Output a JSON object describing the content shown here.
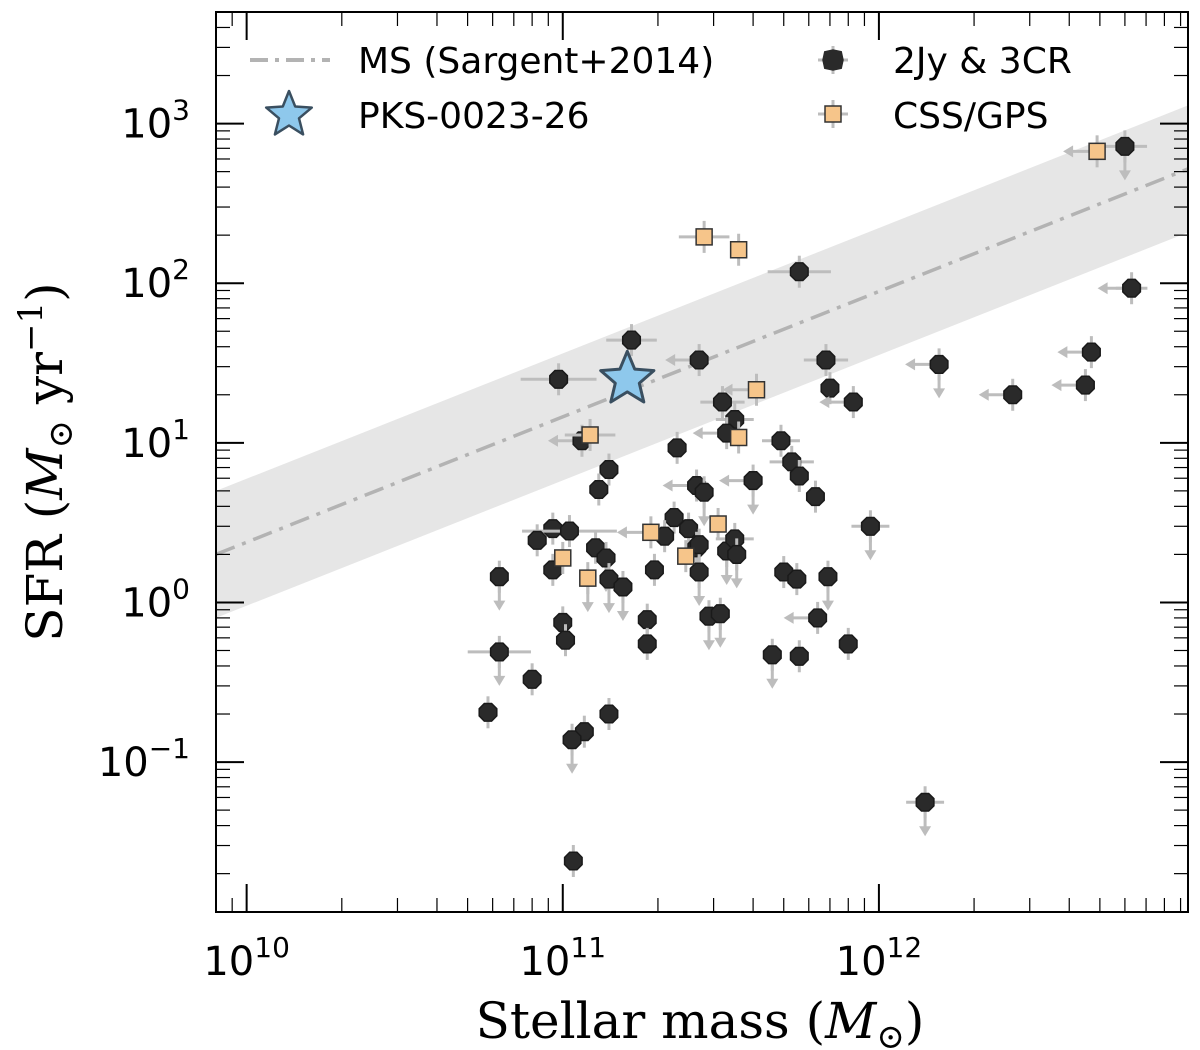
{
  "chart_data": {
    "type": "scatter",
    "xscale": "log",
    "yscale": "log",
    "xlim": [
      8000000000.0,
      9500000000000.0
    ],
    "ylim": [
      0.0115,
      5000
    ],
    "xlabel": {
      "prefix": "Stellar mass (",
      "symbol": "M",
      "sub": "⊙",
      "suffix": ")"
    },
    "ylabel": {
      "prefix": "SFR (",
      "symbol": "M",
      "sub": "⊙",
      "mid": " yr",
      "sup": "−1",
      "suffix": ")"
    },
    "x_ticks": [
      {
        "value": 10000000000.0,
        "base": "10",
        "exp": "10"
      },
      {
        "value": 100000000000.0,
        "base": "10",
        "exp": "11"
      },
      {
        "value": 1000000000000.0,
        "base": "10",
        "exp": "12"
      }
    ],
    "y_ticks": [
      {
        "value": 0.1,
        "base": "10",
        "exp": "−1"
      },
      {
        "value": 1,
        "base": "10",
        "exp": "0"
      },
      {
        "value": 10,
        "base": "10",
        "exp": "1"
      },
      {
        "value": 100,
        "base": "10",
        "exp": "2"
      },
      {
        "value": 1000,
        "base": "10",
        "exp": "3"
      }
    ],
    "main_sequence": {
      "name": "MS (Sargent+2014)",
      "points": [
        [
          8000000000.0,
          2.0
        ],
        [
          9500000000000.0,
          520
        ]
      ],
      "band_low_factor": 0.4,
      "band_high_factor": 2.5,
      "color": "#b3b3b3",
      "band_color": "#e6e6e6"
    },
    "series": [
      {
        "name": "2Jy & 3CR",
        "marker": "hexagon",
        "color": "#2a2a2a",
        "points": [
          {
            "x": 6000000000000.0,
            "y": 720,
            "xerr": 0.07,
            "limit": "y"
          },
          {
            "x": 560000000000.0,
            "y": 118,
            "xerr": 0.1,
            "limit": ""
          },
          {
            "x": 6300000000000.0,
            "y": 93,
            "xerr": 0.05,
            "limit": "x"
          },
          {
            "x": 165000000000.0,
            "y": 44,
            "xerr": 0.08,
            "limit": ""
          },
          {
            "x": 270000000000.0,
            "y": 33,
            "xerr": 0.0,
            "limit": "x"
          },
          {
            "x": 680000000000.0,
            "y": 33,
            "xerr": 0.07,
            "limit": ""
          },
          {
            "x": 1550000000000.0,
            "y": 31,
            "xerr": 0.0,
            "limit": "xy"
          },
          {
            "x": 4700000000000.0,
            "y": 37,
            "xerr": 0.0,
            "limit": "x"
          },
          {
            "x": 97000000000.0,
            "y": 25,
            "xerr": 0.12,
            "limit": ""
          },
          {
            "x": 700000000000.0,
            "y": 22,
            "xerr": 0.0,
            "limit": ""
          },
          {
            "x": 4500000000000.0,
            "y": 23,
            "xerr": 0.0,
            "limit": "x"
          },
          {
            "x": 2650000000000.0,
            "y": 20,
            "xerr": 0.0,
            "limit": "x"
          },
          {
            "x": 320000000000.0,
            "y": 18,
            "xerr": 0.07,
            "limit": ""
          },
          {
            "x": 830000000000.0,
            "y": 18,
            "xerr": 0.0,
            "limit": "x"
          },
          {
            "x": 350000000000.0,
            "y": 14,
            "xerr": 0.06,
            "limit": ""
          },
          {
            "x": 330000000000.0,
            "y": 11.5,
            "xerr": 0.0,
            "limit": "x"
          },
          {
            "x": 115000000000.0,
            "y": 10.3,
            "xerr": 0.0,
            "limit": "x"
          },
          {
            "x": 490000000000.0,
            "y": 10.3,
            "xerr": 0.06,
            "limit": ""
          },
          {
            "x": 230000000000.0,
            "y": 9.3,
            "xerr": 0.0,
            "limit": ""
          },
          {
            "x": 530000000000.0,
            "y": 7.6,
            "xerr": 0.07,
            "limit": ""
          },
          {
            "x": 140000000000.0,
            "y": 6.8,
            "xerr": 0.0,
            "limit": ""
          },
          {
            "x": 560000000000.0,
            "y": 6.2,
            "xerr": 0.0,
            "limit": ""
          },
          {
            "x": 400000000000.0,
            "y": 5.8,
            "xerr": 0.0,
            "limit": "xy"
          },
          {
            "x": 265000000000.0,
            "y": 5.4,
            "xerr": 0.0,
            "limit": "x"
          },
          {
            "x": 130000000000.0,
            "y": 5.1,
            "xerr": 0.0,
            "limit": ""
          },
          {
            "x": 280000000000.0,
            "y": 4.9,
            "xerr": 0.0,
            "limit": "y"
          },
          {
            "x": 630000000000.0,
            "y": 4.6,
            "xerr": 0.0,
            "limit": ""
          },
          {
            "x": 225000000000.0,
            "y": 3.4,
            "xerr": 0.0,
            "limit": ""
          },
          {
            "x": 210000000000.0,
            "y": 2.6,
            "xerr": 0.0,
            "limit": ""
          },
          {
            "x": 250000000000.0,
            "y": 2.9,
            "xerr": 0.0,
            "limit": ""
          },
          {
            "x": 93000000000.0,
            "y": 2.9,
            "xerr": 0.0,
            "limit": ""
          },
          {
            "x": 105000000000.0,
            "y": 2.8,
            "xerr": 0.15,
            "limit": ""
          },
          {
            "x": 83000000000.0,
            "y": 2.45,
            "xerr": 0.0,
            "limit": ""
          },
          {
            "x": 265000000000.0,
            "y": 2.2,
            "xerr": 0.0,
            "limit": ""
          },
          {
            "x": 270000000000.0,
            "y": 2.3,
            "xerr": 0.0,
            "limit": ""
          },
          {
            "x": 330000000000.0,
            "y": 2.1,
            "xerr": 0.0,
            "limit": "y"
          },
          {
            "x": 350000000000.0,
            "y": 2.5,
            "xerr": 0.06,
            "limit": ""
          },
          {
            "x": 355000000000.0,
            "y": 2.0,
            "xerr": 0.0,
            "limit": "y"
          },
          {
            "x": 127000000000.0,
            "y": 2.2,
            "xerr": 0.0,
            "limit": ""
          },
          {
            "x": 137000000000.0,
            "y": 1.9,
            "xerr": 0.0,
            "limit": "y"
          },
          {
            "x": 93000000000.0,
            "y": 1.6,
            "xerr": 0.0,
            "limit": ""
          },
          {
            "x": 195000000000.0,
            "y": 1.6,
            "xerr": 0.0,
            "limit": ""
          },
          {
            "x": 270000000000.0,
            "y": 1.55,
            "xerr": 0.0,
            "limit": "y"
          },
          {
            "x": 500000000000.0,
            "y": 1.55,
            "xerr": 0.0,
            "limit": ""
          },
          {
            "x": 550000000000.0,
            "y": 1.4,
            "xerr": 0.0,
            "limit": ""
          },
          {
            "x": 690000000000.0,
            "y": 1.45,
            "xerr": 0.0,
            "limit": "y"
          },
          {
            "x": 63000000000.0,
            "y": 1.45,
            "xerr": 0.0,
            "limit": "y"
          },
          {
            "x": 140000000000.0,
            "y": 1.4,
            "xerr": 0.0,
            "limit": "y"
          },
          {
            "x": 155000000000.0,
            "y": 1.25,
            "xerr": 0.0,
            "limit": "y"
          },
          {
            "x": 185000000000.0,
            "y": 0.78,
            "xerr": 0.0,
            "limit": "y"
          },
          {
            "x": 290000000000.0,
            "y": 0.82,
            "xerr": 0.0,
            "limit": "y"
          },
          {
            "x": 315000000000.0,
            "y": 0.85,
            "xerr": 0.0,
            "limit": "y"
          },
          {
            "x": 640000000000.0,
            "y": 0.8,
            "xerr": 0.0,
            "limit": "x"
          },
          {
            "x": 100000000000.0,
            "y": 0.75,
            "xerr": 0.0,
            "limit": ""
          },
          {
            "x": 185000000000.0,
            "y": 0.55,
            "xerr": 0.0,
            "limit": ""
          },
          {
            "x": 102000000000.0,
            "y": 0.58,
            "xerr": 0.0,
            "limit": ""
          },
          {
            "x": 800000000000.0,
            "y": 0.55,
            "xerr": 0.0,
            "limit": ""
          },
          {
            "x": 63000000000.0,
            "y": 0.49,
            "xerr": 0.1,
            "limit": "y"
          },
          {
            "x": 460000000000.0,
            "y": 0.47,
            "xerr": 0.0,
            "limit": "y"
          },
          {
            "x": 560000000000.0,
            "y": 0.46,
            "xerr": 0.0,
            "limit": ""
          },
          {
            "x": 80000000000.0,
            "y": 0.33,
            "xerr": 0.0,
            "limit": ""
          },
          {
            "x": 58000000000.0,
            "y": 0.205,
            "xerr": 0.0,
            "limit": ""
          },
          {
            "x": 140000000000.0,
            "y": 0.2,
            "xerr": 0.0,
            "limit": ""
          },
          {
            "x": 117000000000.0,
            "y": 0.155,
            "xerr": 0.0,
            "limit": ""
          },
          {
            "x": 107000000000.0,
            "y": 0.138,
            "xerr": 0.0,
            "limit": "y"
          },
          {
            "x": 1400000000000.0,
            "y": 0.056,
            "xerr": 0.06,
            "limit": "y"
          },
          {
            "x": 108000000000.0,
            "y": 0.024,
            "xerr": 0.0,
            "limit": ""
          },
          {
            "x": 940000000000.0,
            "y": 3.0,
            "xerr": 0.06,
            "limit": "y"
          }
        ]
      },
      {
        "name": "CSS/GPS",
        "marker": "square",
        "color": "#f6c58a",
        "points": [
          {
            "x": 4900000000000.0,
            "y": 670,
            "xerr": 0.0,
            "limit": "x"
          },
          {
            "x": 280000000000.0,
            "y": 195,
            "xerr": 0.08,
            "limit": ""
          },
          {
            "x": 360000000000.0,
            "y": 162,
            "xerr": 0.0,
            "limit": ""
          },
          {
            "x": 410000000000.0,
            "y": 21.5,
            "xerr": 0.0,
            "limit": "x"
          },
          {
            "x": 122000000000.0,
            "y": 11.2,
            "xerr": 0.08,
            "limit": ""
          },
          {
            "x": 360000000000.0,
            "y": 10.8,
            "xerr": 0.0,
            "limit": ""
          },
          {
            "x": 310000000000.0,
            "y": 3.1,
            "xerr": 0.0,
            "limit": ""
          },
          {
            "x": 190000000000.0,
            "y": 2.75,
            "xerr": 0.0,
            "limit": "x"
          },
          {
            "x": 245000000000.0,
            "y": 1.95,
            "xerr": 0.0,
            "limit": ""
          },
          {
            "x": 100000000000.0,
            "y": 1.9,
            "xerr": 0.0,
            "limit": ""
          },
          {
            "x": 120000000000.0,
            "y": 1.42,
            "xerr": 0.0,
            "limit": "y"
          }
        ]
      },
      {
        "name": "PKS-0023-26",
        "marker": "star",
        "color": "#8ec8ec",
        "points": [
          {
            "x": 160000000000.0,
            "y": 25,
            "xerr": 0.0,
            "limit": ""
          }
        ]
      }
    ],
    "legend": {
      "placement": "top",
      "entries": [
        "MS (Sargent+2014)",
        "PKS-0023-26",
        "2Jy & 3CR",
        "CSS/GPS"
      ]
    }
  }
}
